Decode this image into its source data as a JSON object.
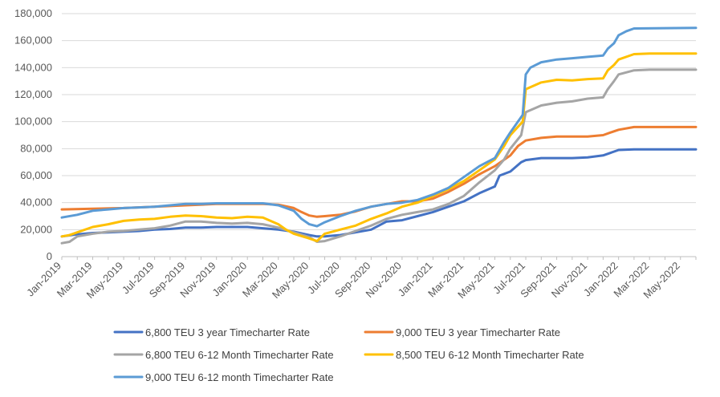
{
  "chart_data": {
    "type": "line",
    "title": "",
    "xlabel": "",
    "ylabel": "",
    "ylim": [
      0,
      180000
    ],
    "y_ticks": [
      0,
      20000,
      40000,
      60000,
      80000,
      100000,
      120000,
      140000,
      160000,
      180000
    ],
    "y_tick_labels": [
      "0",
      "20,000",
      "40,000",
      "60,000",
      "80,000",
      "100,000",
      "120,000",
      "140,000",
      "160,000",
      "180,000"
    ],
    "x_tick_labels": [
      "Jan-2019",
      "Mar-2019",
      "May-2019",
      "Jul-2019",
      "Sep-2019",
      "Nov-2019",
      "Jan-2020",
      "Mar-2020",
      "May-2020",
      "Jul-2020",
      "Sep-2020",
      "Nov-2020",
      "Jan-2021",
      "Mar-2021",
      "May-2021",
      "Jul-2021",
      "Sep-2021",
      "Nov-2021",
      "Jan-2022",
      "Mar-2022",
      "May-2022"
    ],
    "x_unit": "month index from Jan-2019",
    "grid": "horizontal",
    "legend_position": "bottom",
    "series": [
      {
        "name": "6,800 TEU 3 year Timecharter Rate",
        "color": "#4472C4",
        "points": [
          [
            0,
            15000
          ],
          [
            1,
            16500
          ],
          [
            2,
            17500
          ],
          [
            3,
            18000
          ],
          [
            4,
            18500
          ],
          [
            5,
            19000
          ],
          [
            6,
            20000
          ],
          [
            7,
            20500
          ],
          [
            8,
            21500
          ],
          [
            9,
            21500
          ],
          [
            10,
            22000
          ],
          [
            11,
            22000
          ],
          [
            12,
            22000
          ],
          [
            13,
            21000
          ],
          [
            14,
            20000
          ],
          [
            15,
            18500
          ],
          [
            16,
            16000
          ],
          [
            16.5,
            15000
          ],
          [
            17,
            15000
          ],
          [
            17.5,
            15500
          ],
          [
            18,
            16000
          ],
          [
            19,
            18000
          ],
          [
            20,
            20000
          ],
          [
            21,
            26000
          ],
          [
            22,
            27000
          ],
          [
            23,
            30000
          ],
          [
            24,
            33000
          ],
          [
            25,
            37000
          ],
          [
            26,
            41000
          ],
          [
            27,
            47000
          ],
          [
            28,
            52000
          ],
          [
            28.3,
            60000
          ],
          [
            29,
            63000
          ],
          [
            29.7,
            70000
          ],
          [
            30,
            71500
          ],
          [
            31,
            73000
          ],
          [
            32,
            73000
          ],
          [
            33,
            73000
          ],
          [
            34,
            73500
          ],
          [
            35,
            75000
          ],
          [
            35.5,
            77000
          ],
          [
            36,
            79000
          ],
          [
            37,
            79500
          ],
          [
            39,
            79500
          ],
          [
            41,
            79500
          ]
        ]
      },
      {
        "name": "9,000 TEU 3 year Timecharter Rate",
        "color": "#ED7D31",
        "points": [
          [
            0,
            35000
          ],
          [
            2,
            35500
          ],
          [
            4,
            36000
          ],
          [
            6,
            37000
          ],
          [
            8,
            38000
          ],
          [
            10,
            39000
          ],
          [
            12,
            39000
          ],
          [
            13,
            39000
          ],
          [
            14,
            38500
          ],
          [
            15,
            36000
          ],
          [
            15.5,
            33000
          ],
          [
            16,
            30500
          ],
          [
            16.5,
            29500
          ],
          [
            17,
            30000
          ],
          [
            18,
            31000
          ],
          [
            19,
            33500
          ],
          [
            20,
            37000
          ],
          [
            21,
            39000
          ],
          [
            22,
            41000
          ],
          [
            23,
            41000
          ],
          [
            24,
            43000
          ],
          [
            25,
            48000
          ],
          [
            26,
            54000
          ],
          [
            27,
            61000
          ],
          [
            28,
            67000
          ],
          [
            28.5,
            71000
          ],
          [
            29,
            75000
          ],
          [
            29.5,
            82000
          ],
          [
            30,
            86000
          ],
          [
            31,
            88000
          ],
          [
            32,
            89000
          ],
          [
            33,
            89000
          ],
          [
            34,
            89000
          ],
          [
            35,
            90000
          ],
          [
            35.5,
            92000
          ],
          [
            36,
            94000
          ],
          [
            37,
            96000
          ],
          [
            38,
            96000
          ],
          [
            41,
            96000
          ]
        ]
      },
      {
        "name": "6,800 TEU 6-12 Month Timecharter Rate",
        "color": "#A5A5A5",
        "points": [
          [
            0,
            10000
          ],
          [
            0.5,
            11000
          ],
          [
            1,
            15000
          ],
          [
            2,
            17000
          ],
          [
            3,
            18500
          ],
          [
            4,
            19000
          ],
          [
            5,
            20000
          ],
          [
            6,
            21000
          ],
          [
            7,
            23000
          ],
          [
            8,
            26000
          ],
          [
            9,
            26000
          ],
          [
            10,
            25000
          ],
          [
            11,
            24500
          ],
          [
            12,
            25000
          ],
          [
            13,
            24000
          ],
          [
            14,
            21500
          ],
          [
            15,
            18000
          ],
          [
            16,
            14500
          ],
          [
            16.5,
            11000
          ],
          [
            17,
            11500
          ],
          [
            18,
            15000
          ],
          [
            19,
            19000
          ],
          [
            20,
            23000
          ],
          [
            21,
            28000
          ],
          [
            22,
            31000
          ],
          [
            23,
            33000
          ],
          [
            24,
            35000
          ],
          [
            25,
            39000
          ],
          [
            26,
            45000
          ],
          [
            27,
            55000
          ],
          [
            28,
            64000
          ],
          [
            28.6,
            72000
          ],
          [
            29,
            80000
          ],
          [
            29.7,
            90000
          ],
          [
            30,
            107000
          ],
          [
            31,
            112000
          ],
          [
            32,
            114000
          ],
          [
            33,
            115000
          ],
          [
            34,
            117000
          ],
          [
            35,
            118000
          ],
          [
            35.3,
            124000
          ],
          [
            35.7,
            130000
          ],
          [
            36,
            135000
          ],
          [
            37,
            138000
          ],
          [
            38,
            138500
          ],
          [
            41,
            138500
          ]
        ]
      },
      {
        "name": "8,500 TEU 6-12 Month Timecharter Rate",
        "color": "#FFC000",
        "points": [
          [
            0,
            15000
          ],
          [
            0.5,
            16000
          ],
          [
            1,
            18000
          ],
          [
            2,
            22000
          ],
          [
            3,
            24000
          ],
          [
            4,
            26500
          ],
          [
            5,
            27500
          ],
          [
            6,
            28000
          ],
          [
            7,
            29500
          ],
          [
            8,
            30500
          ],
          [
            9,
            30000
          ],
          [
            10,
            29000
          ],
          [
            11,
            28500
          ],
          [
            12,
            29500
          ],
          [
            13,
            29000
          ],
          [
            14,
            24000
          ],
          [
            14.5,
            20000
          ],
          [
            15,
            17000
          ],
          [
            16,
            13500
          ],
          [
            16.5,
            11500
          ],
          [
            17,
            17000
          ],
          [
            18,
            20000
          ],
          [
            19,
            23000
          ],
          [
            20,
            28000
          ],
          [
            21,
            32000
          ],
          [
            22,
            37000
          ],
          [
            23,
            40000
          ],
          [
            24,
            45000
          ],
          [
            25,
            50000
          ],
          [
            26,
            56000
          ],
          [
            27,
            64000
          ],
          [
            28,
            72000
          ],
          [
            28.6,
            82000
          ],
          [
            29,
            90000
          ],
          [
            29.8,
            100000
          ],
          [
            30,
            124000
          ],
          [
            31,
            129000
          ],
          [
            32,
            131000
          ],
          [
            33,
            130500
          ],
          [
            34,
            131500
          ],
          [
            35,
            132000
          ],
          [
            35.3,
            138000
          ],
          [
            35.7,
            142000
          ],
          [
            36,
            146000
          ],
          [
            37,
            150000
          ],
          [
            38,
            150500
          ],
          [
            41,
            150500
          ]
        ]
      },
      {
        "name": "9,000 TEU 6-12 month Timecharter Rate",
        "color": "#5B9BD5",
        "points": [
          [
            0,
            29000
          ],
          [
            1,
            31000
          ],
          [
            2,
            34000
          ],
          [
            3,
            35000
          ],
          [
            4,
            36000
          ],
          [
            5,
            36500
          ],
          [
            6,
            37000
          ],
          [
            7,
            38000
          ],
          [
            8,
            39000
          ],
          [
            9,
            39000
          ],
          [
            10,
            39500
          ],
          [
            11,
            39500
          ],
          [
            12,
            39500
          ],
          [
            13,
            39500
          ],
          [
            14,
            38000
          ],
          [
            15,
            34000
          ],
          [
            15.5,
            28000
          ],
          [
            16,
            24000
          ],
          [
            16.5,
            22500
          ],
          [
            17,
            25500
          ],
          [
            18,
            30000
          ],
          [
            19,
            34000
          ],
          [
            20,
            37000
          ],
          [
            21,
            39000
          ],
          [
            22,
            40000
          ],
          [
            23,
            42000
          ],
          [
            24,
            46000
          ],
          [
            25,
            51000
          ],
          [
            26,
            59000
          ],
          [
            27,
            67000
          ],
          [
            28,
            73000
          ],
          [
            28.6,
            85000
          ],
          [
            29,
            92000
          ],
          [
            29.8,
            105000
          ],
          [
            30,
            135000
          ],
          [
            30.3,
            140000
          ],
          [
            31,
            144000
          ],
          [
            32,
            146000
          ],
          [
            33,
            147000
          ],
          [
            34,
            148000
          ],
          [
            35,
            149000
          ],
          [
            35.3,
            154000
          ],
          [
            35.7,
            158000
          ],
          [
            36,
            164000
          ],
          [
            36.5,
            167000
          ],
          [
            37,
            169000
          ],
          [
            41,
            169500
          ]
        ]
      }
    ]
  }
}
